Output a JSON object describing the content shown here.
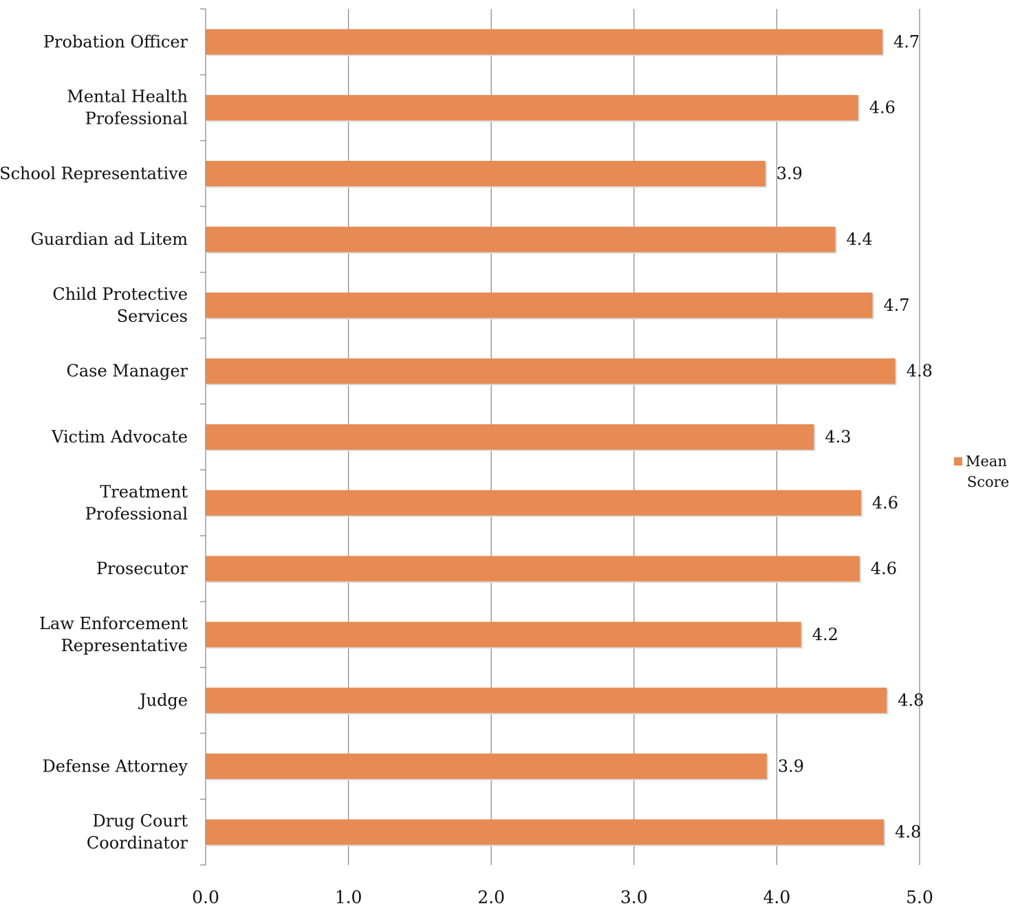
{
  "chart_data": {
    "type": "bar",
    "orientation": "horizontal",
    "categories": [
      "Probation Officer",
      "Mental Health Professional",
      "School Representative",
      "Guardian ad Litem",
      "Child Protective Services",
      "Case Manager",
      "Victim Advocate",
      "Treatment Professional",
      "Prosecutor",
      "Law Enforcement Representative",
      "Judge",
      "Defense Attorney",
      "Drug Court Coordinator"
    ],
    "category_lines": [
      [
        "Probation Officer"
      ],
      [
        "Mental Health",
        "Professional"
      ],
      [
        "School Representative"
      ],
      [
        "Guardian ad Litem"
      ],
      [
        "Child Protective",
        "Services"
      ],
      [
        "Case Manager"
      ],
      [
        "Victim Advocate"
      ],
      [
        "Treatment",
        "Professional"
      ],
      [
        "Prosecutor"
      ],
      [
        "Law Enforcement",
        "Representative"
      ],
      [
        "Judge"
      ],
      [
        "Defense Attorney"
      ],
      [
        "Drug Court",
        "Coordinator"
      ]
    ],
    "series": [
      {
        "name": "Mean Score",
        "color": "#e88a54",
        "values": [
          4.74,
          4.57,
          3.92,
          4.41,
          4.67,
          4.83,
          4.26,
          4.59,
          4.58,
          4.17,
          4.77,
          3.93,
          4.75
        ],
        "labels": [
          "4.7",
          "4.6",
          "3.9",
          "4.4",
          "4.7",
          "4.8",
          "4.3",
          "4.6",
          "4.6",
          "4.2",
          "4.8",
          "3.9",
          "4.8"
        ]
      }
    ],
    "xlim": [
      0,
      5
    ],
    "xticks": [
      "0.0",
      "1.0",
      "2.0",
      "3.0",
      "4.0",
      "5.0"
    ],
    "grid": "vertical",
    "legend_position": "right"
  },
  "legend": {
    "label_line1": "Mean",
    "label_line2": "Score"
  }
}
